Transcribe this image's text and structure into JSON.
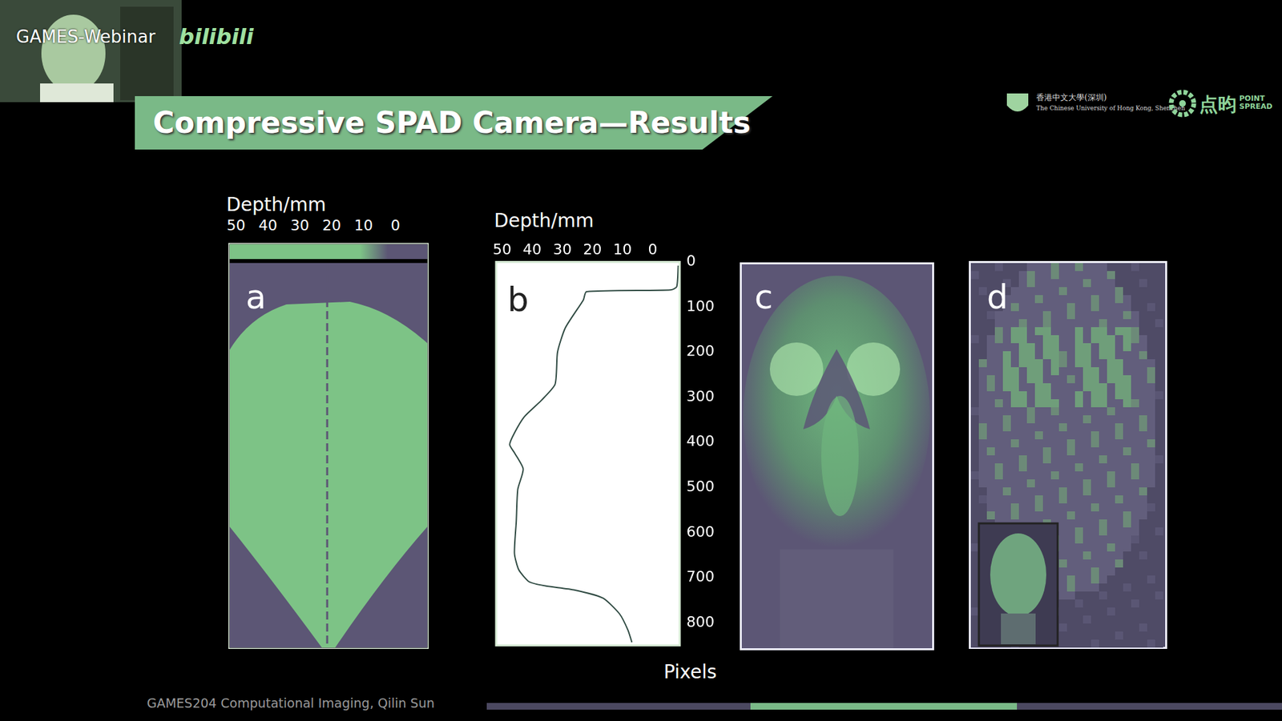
{
  "header": {
    "webinar": "GAMES-Webinar",
    "platform": "bilibili",
    "title": "Compressive SPAD Camera—Results",
    "logo_school_cn": "香港中文大學(深圳)",
    "logo_school_en": "The Chinese University of Hong Kong, Shenzhen",
    "logo_company_cn": "点昀",
    "logo_company_en": "POINT SPREAD"
  },
  "panels": {
    "a": {
      "label": "a",
      "colorbar": {
        "label": "Depth/mm",
        "range": [
          52,
          -10
        ],
        "ticks": [
          50,
          40,
          30,
          20,
          10,
          0
        ]
      }
    },
    "b": {
      "label": "b"
    },
    "c": {
      "label": "c"
    },
    "d": {
      "label": "d"
    }
  },
  "chart_data": {
    "type": "line",
    "x_label": "Depth/mm",
    "y_label": "Pixels",
    "x": [
      -8.5,
      -8,
      -6,
      22,
      23,
      29,
      31.6,
      32.4,
      37,
      42.6,
      45.9,
      47.5,
      45.9,
      43,
      44.8,
      45.3,
      45.9,
      44.5,
      41,
      35.7,
      26,
      16.5,
      11,
      8.2,
      6.9
    ],
    "values": [
      8,
      55,
      62,
      66,
      84,
      146,
      200,
      271,
      307,
      343,
      379,
      405,
      423,
      459,
      504,
      575,
      646,
      682,
      709,
      718,
      727,
      745,
      780,
      816,
      843
    ],
    "color": "#2f4a42",
    "xlim": [
      52,
      -9
    ],
    "xticks": [
      50,
      40,
      30,
      20,
      10,
      0
    ],
    "ylim": [
      850,
      0
    ],
    "yticks": [
      0,
      100,
      200,
      300,
      400,
      500,
      600,
      700,
      800
    ],
    "grid": false
  },
  "footer": "GAMES204 Computational Imaging, Qilin Sun"
}
